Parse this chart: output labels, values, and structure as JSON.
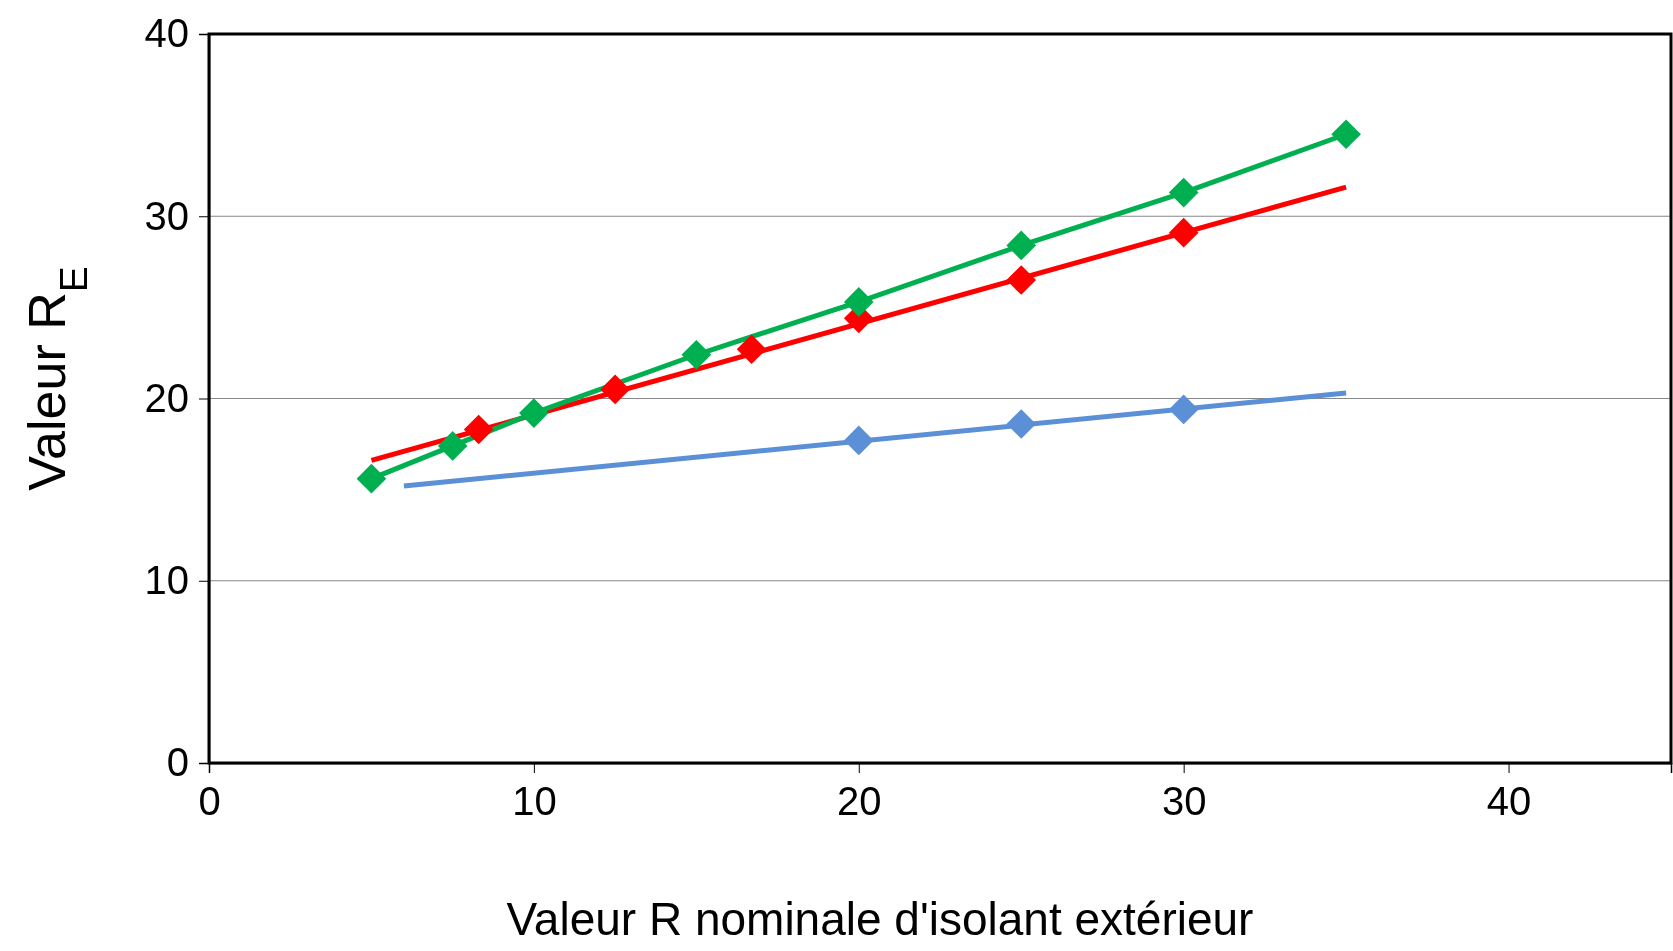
{
  "chart_data": {
    "type": "line",
    "xlabel": "Valeur R nominale d'isolant extérieur",
    "ylabel": "Valeur R$_{E}$",
    "xlim": [
      0,
      45
    ],
    "xticks": [
      0,
      10,
      20,
      30,
      40
    ],
    "ylim": [
      0,
      40
    ],
    "yticks": [
      0,
      10,
      20,
      30,
      40
    ],
    "grid": "y",
    "series": [
      {
        "marker": "none",
        "color": "#5b8fd6",
        "x": [
          6,
          35
        ],
        "values": [
          15.2,
          20.3
        ]
      },
      {
        "marker": "none",
        "color": "#ff0000",
        "x": [
          5,
          35
        ],
        "values": [
          16.6,
          31.6
        ]
      },
      {
        "type": "scatter",
        "marker": "diamond",
        "color": "#5b8fd6",
        "x": [
          20,
          25,
          30
        ],
        "values": [
          17.7,
          18.6,
          19.4
        ]
      },
      {
        "type": "scatter",
        "marker": "diamond",
        "color": "#ff0000",
        "x": [
          8.3,
          12.5,
          16.7,
          20,
          25,
          30
        ],
        "values": [
          18.3,
          20.5,
          22.7,
          24.4,
          26.5,
          29.1
        ]
      },
      {
        "marker": "diamond",
        "color": "#00b050",
        "x": [
          5,
          7.5,
          10,
          15,
          20,
          25,
          30,
          35
        ],
        "values": [
          15.6,
          17.4,
          19.2,
          22.4,
          25.3,
          28.4,
          31.3,
          34.5
        ]
      }
    ]
  }
}
